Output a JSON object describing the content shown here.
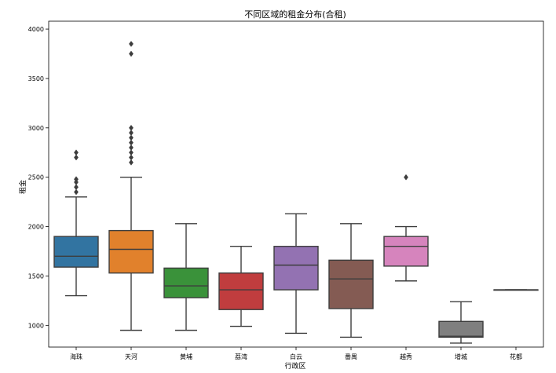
{
  "chart_data": {
    "type": "box",
    "title": "不同区域的租金分布(合租)",
    "xlabel": "行政区",
    "ylabel": "租金",
    "ylim": [
      780,
      4080
    ],
    "yticks": [
      1000,
      1500,
      2000,
      2500,
      3000,
      3500,
      4000
    ],
    "categories": [
      "海珠",
      "天河",
      "黄埔",
      "荔湾",
      "白云",
      "番禺",
      "越秀",
      "增城",
      "花都"
    ],
    "series": [
      {
        "category": "海珠",
        "color": "#3274a1",
        "whisker_low": 1300,
        "q1": 1590,
        "median": 1700,
        "q3": 1900,
        "whisker_high": 2300,
        "outliers": [
          2350,
          2400,
          2450,
          2480,
          2700,
          2750
        ]
      },
      {
        "category": "天河",
        "color": "#e1812c",
        "whisker_low": 950,
        "q1": 1530,
        "median": 1770,
        "q3": 1960,
        "whisker_high": 2500,
        "outliers": [
          2650,
          2700,
          2750,
          2800,
          2850,
          2900,
          2950,
          3000,
          3750,
          3850
        ]
      },
      {
        "category": "黄埔",
        "color": "#3a923a",
        "whisker_low": 950,
        "q1": 1280,
        "median": 1400,
        "q3": 1580,
        "whisker_high": 2030,
        "outliers": []
      },
      {
        "category": "荔湾",
        "color": "#c03d3e",
        "whisker_low": 990,
        "q1": 1160,
        "median": 1360,
        "q3": 1530,
        "whisker_high": 1800,
        "outliers": []
      },
      {
        "category": "白云",
        "color": "#9372b2",
        "whisker_low": 920,
        "q1": 1360,
        "median": 1610,
        "q3": 1800,
        "whisker_high": 2130,
        "outliers": []
      },
      {
        "category": "番禺",
        "color": "#845b53",
        "whisker_low": 880,
        "q1": 1170,
        "median": 1470,
        "q3": 1660,
        "whisker_high": 2030,
        "outliers": []
      },
      {
        "category": "越秀",
        "color": "#d684bd",
        "whisker_low": 1450,
        "q1": 1600,
        "median": 1800,
        "q3": 1900,
        "whisker_high": 2000,
        "outliers": [
          2500
        ]
      },
      {
        "category": "增城",
        "color": "#7f7f7f",
        "whisker_low": 820,
        "q1": 880,
        "median": 890,
        "q3": 1040,
        "whisker_high": 1240,
        "outliers": []
      },
      {
        "category": "花都",
        "color": "#a9aa35",
        "whisker_low": 1360,
        "q1": 1360,
        "median": 1360,
        "q3": 1360,
        "whisker_high": 1360,
        "outliers": []
      }
    ]
  }
}
